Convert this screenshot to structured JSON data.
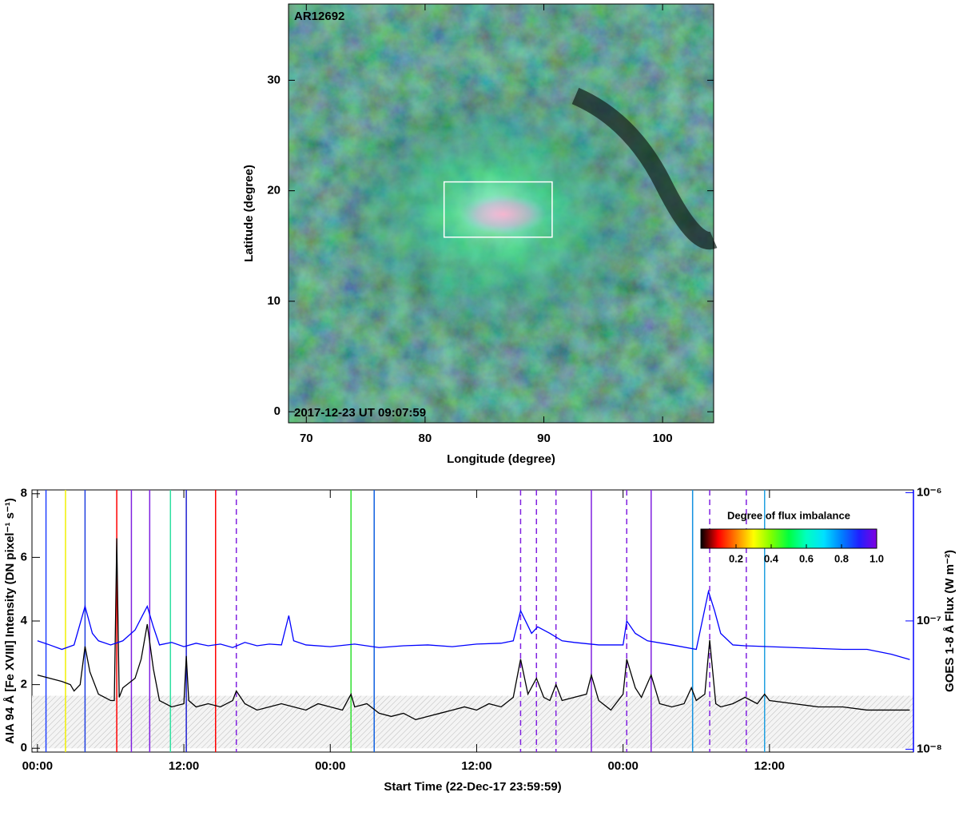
{
  "chart_data": [
    {
      "type": "image",
      "annotations": [
        "AR12692",
        "2017-12-23 UT 09:07:59"
      ],
      "xlabel": "Longitude (degree)",
      "ylabel": "Latitude (degree)",
      "xlim": [
        68.5,
        104.3
      ],
      "ylim": [
        -1,
        36.9
      ],
      "xticks": [
        70,
        80,
        90,
        100
      ],
      "yticks": [
        0,
        10,
        20,
        30
      ],
      "box": {
        "x": [
          81.6,
          90.7
        ],
        "y": [
          15.8,
          20.8
        ],
        "color": "#ffffff"
      }
    },
    {
      "type": "line",
      "xlabel": "Start Time (22-Dec-17 23:59:59)",
      "ylabel": "AIA 94 Å [Fe XVIII] Intensity (DN pixel⁻¹ s⁻¹)",
      "y2label": "GOES 1-8 Å Flux (W m⁻²)",
      "xlim": [
        -0.45,
        71.8
      ],
      "xticks": [
        {
          "value": 0,
          "label": "00:00"
        },
        {
          "value": 12,
          "label": "12:00"
        },
        {
          "value": 24,
          "label": "00:00"
        },
        {
          "value": 36,
          "label": "12:00"
        },
        {
          "value": 48,
          "label": "00:00"
        },
        {
          "value": 60,
          "label": "12:00"
        }
      ],
      "ylim": [
        -0.12,
        8.12
      ],
      "yticks": [
        0,
        2,
        4,
        6,
        8
      ],
      "y2lim": [
        9.5e-09,
        1.05e-06
      ],
      "y2log": true,
      "y2color": "#0000ff",
      "y2ticks": [
        {
          "value": 1e-08,
          "label": "10⁻⁸"
        },
        {
          "value": 1e-07,
          "label": "10⁻⁷"
        },
        {
          "value": 1e-06,
          "label": "10⁻⁶"
        }
      ],
      "shaded_band": [
        0,
        1.65
      ],
      "series": [
        {
          "color": "#000000",
          "x": [
            0,
            1,
            2,
            2.7,
            3.0,
            3.5,
            3.9,
            4.3,
            5,
            6,
            6.3,
            6.5,
            6.7,
            7,
            8,
            8.5,
            9,
            9.5,
            10,
            11,
            12,
            12.2,
            12.4,
            13,
            14,
            15,
            16,
            16.3,
            17,
            18,
            19,
            20,
            21,
            22,
            23,
            24,
            25,
            25.7,
            26,
            27,
            28,
            29,
            30,
            31,
            32,
            33,
            34,
            35,
            36,
            37,
            38,
            39,
            39.6,
            40.2,
            40.9,
            41.5,
            42,
            42.5,
            43,
            44,
            45,
            45.4,
            46,
            47,
            48,
            48.3,
            49,
            49.5,
            50.3,
            51,
            52,
            53,
            53.6,
            54,
            54.7,
            55.1,
            55.6,
            56,
            57,
            58,
            59,
            59.6,
            60,
            62,
            64,
            66,
            68,
            70,
            71.5
          ],
          "values": [
            2.3,
            2.2,
            2.1,
            2.0,
            1.8,
            2.0,
            3.2,
            2.4,
            1.7,
            1.5,
            1.5,
            6.6,
            1.6,
            1.9,
            2.2,
            2.8,
            3.9,
            2.5,
            1.5,
            1.3,
            1.4,
            2.9,
            1.5,
            1.3,
            1.4,
            1.3,
            1.5,
            1.8,
            1.4,
            1.2,
            1.3,
            1.4,
            1.3,
            1.2,
            1.4,
            1.3,
            1.2,
            1.7,
            1.3,
            1.4,
            1.1,
            1.0,
            1.1,
            0.9,
            1.0,
            1.1,
            1.2,
            1.3,
            1.2,
            1.4,
            1.3,
            1.6,
            2.8,
            1.7,
            2.2,
            1.6,
            1.5,
            2.0,
            1.5,
            1.6,
            1.7,
            2.3,
            1.5,
            1.2,
            1.7,
            2.8,
            1.9,
            1.6,
            2.3,
            1.4,
            1.3,
            1.4,
            1.9,
            1.5,
            1.7,
            3.4,
            1.4,
            1.3,
            1.4,
            1.6,
            1.4,
            1.7,
            1.5,
            1.4,
            1.3,
            1.3,
            1.2,
            1.2,
            1.2
          ]
        },
        {
          "color": "#0000ff",
          "axis": "y2",
          "x": [
            0,
            1,
            2,
            3,
            3.9,
            4.5,
            5,
            6,
            7,
            8,
            8.6,
            9,
            9.5,
            10,
            11,
            12,
            13,
            14,
            15,
            16,
            17,
            18,
            19,
            20,
            20.6,
            21,
            22,
            24,
            26,
            28,
            30,
            32,
            34,
            36,
            38,
            39,
            39.6,
            40.5,
            41,
            42,
            43,
            44,
            46,
            48,
            48.3,
            49,
            50,
            52,
            54,
            55,
            55.5,
            56,
            57,
            58,
            60,
            62,
            64,
            66,
            68,
            70,
            71.5
          ],
          "values": [
            7e-08,
            6.5e-08,
            6e-08,
            6.5e-08,
            1.3e-07,
            8e-08,
            7e-08,
            6.5e-08,
            7e-08,
            8.5e-08,
            1.1e-07,
            1.3e-07,
            9e-08,
            6.5e-08,
            6.8e-08,
            6.3e-08,
            6.7e-08,
            6.4e-08,
            6.6e-08,
            6.2e-08,
            6.8e-08,
            6.4e-08,
            6.6e-08,
            6.5e-08,
            1.1e-07,
            7e-08,
            6.5e-08,
            6.3e-08,
            6.6e-08,
            6.2e-08,
            6.4e-08,
            6.5e-08,
            6.3e-08,
            6.6e-08,
            6.7e-08,
            7e-08,
            1.2e-07,
            8e-08,
            9e-08,
            8e-08,
            7e-08,
            6.8e-08,
            6.5e-08,
            6.5e-08,
            1e-07,
            8e-08,
            7e-08,
            6.5e-08,
            6e-08,
            1.7e-07,
            1.2e-07,
            8e-08,
            6.5e-08,
            6.4e-08,
            6.3e-08,
            6.2e-08,
            6.1e-08,
            6e-08,
            6e-08,
            5.5e-08,
            5e-08
          ]
        }
      ],
      "events": [
        {
          "x": 0.7,
          "color": "#2040ff",
          "dashed": false
        },
        {
          "x": 2.3,
          "color": "#f0f000",
          "dashed": false
        },
        {
          "x": 3.9,
          "color": "#2040e0",
          "dashed": false
        },
        {
          "x": 6.5,
          "color": "#ff0000",
          "dashed": false
        },
        {
          "x": 7.7,
          "color": "#8020e0",
          "dashed": false
        },
        {
          "x": 9.2,
          "color": "#8020e0",
          "dashed": false
        },
        {
          "x": 10.9,
          "color": "#30e0a0",
          "dashed": false
        },
        {
          "x": 12.2,
          "color": "#2020d0",
          "dashed": false
        },
        {
          "x": 14.6,
          "color": "#ff0000",
          "dashed": false
        },
        {
          "x": 16.3,
          "color": "#8020e0",
          "dashed": true
        },
        {
          "x": 25.7,
          "color": "#30e030",
          "dashed": false
        },
        {
          "x": 27.6,
          "color": "#1060e0",
          "dashed": false
        },
        {
          "x": 39.6,
          "color": "#8020e0",
          "dashed": true
        },
        {
          "x": 40.9,
          "color": "#8020e0",
          "dashed": true
        },
        {
          "x": 42.5,
          "color": "#8020e0",
          "dashed": true
        },
        {
          "x": 45.4,
          "color": "#8020e0",
          "dashed": false
        },
        {
          "x": 48.3,
          "color": "#8020e0",
          "dashed": true
        },
        {
          "x": 50.3,
          "color": "#8020e0",
          "dashed": false
        },
        {
          "x": 53.7,
          "color": "#1090e0",
          "dashed": false
        },
        {
          "x": 55.1,
          "color": "#8020e0",
          "dashed": true
        },
        {
          "x": 58.1,
          "color": "#8020e0",
          "dashed": true
        },
        {
          "x": 59.6,
          "color": "#20a0e0",
          "dashed": false
        }
      ],
      "colorbar": {
        "title": "Degree of flux imbalance",
        "lim": [
          0,
          1
        ],
        "ticks": [
          0.2,
          0.4,
          0.6,
          0.8,
          {
            "value": 1,
            "label": "1.0"
          }
        ],
        "colors": [
          "#000000",
          "#ff0000",
          "#ff8000",
          "#ffff00",
          "#80ff00",
          "#00ff40",
          "#00ffc0",
          "#00e0ff",
          "#0080ff",
          "#2020ff",
          "#8000e0"
        ]
      }
    }
  ]
}
